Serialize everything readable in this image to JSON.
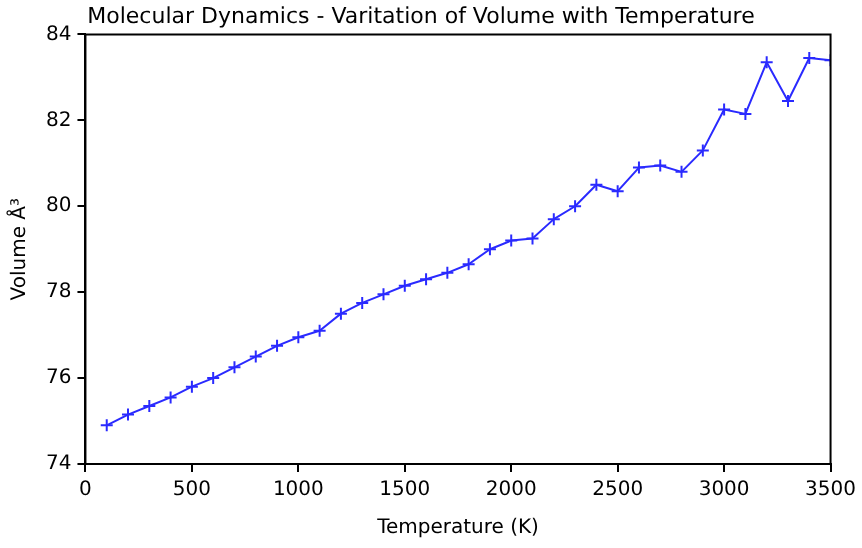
{
  "chart_data": {
    "type": "line",
    "title": "Molecular Dynamics - Varitation of Volume with Temperature",
    "xlabel": "Temperature (K)",
    "ylabel": "Volume Å³",
    "x": [
      100,
      200,
      300,
      400,
      500,
      600,
      700,
      800,
      900,
      1000,
      1100,
      1200,
      1300,
      1400,
      1500,
      1600,
      1700,
      1800,
      1900,
      2000,
      2100,
      2200,
      2300,
      2400,
      2500,
      2600,
      2700,
      2800,
      2900,
      3000,
      3100,
      3200,
      3300,
      3400,
      3500
    ],
    "series": [
      {
        "color": "#2a2aff",
        "values": [
          74.9,
          75.15,
          75.35,
          75.55,
          75.8,
          76.0,
          76.25,
          76.5,
          76.75,
          76.95,
          77.1,
          77.5,
          77.75,
          77.95,
          78.15,
          78.3,
          78.45,
          78.65,
          79.0,
          79.2,
          79.25,
          79.7,
          80.0,
          80.5,
          80.35,
          80.9,
          80.95,
          80.8,
          81.3,
          82.25,
          82.15,
          83.35,
          82.45,
          83.45,
          83.4
        ]
      }
    ],
    "xlim": [
      0,
      3500
    ],
    "xticks": [
      0,
      500,
      1000,
      1500,
      2000,
      2500,
      3000,
      3500
    ],
    "ylim": [
      74,
      84
    ],
    "yticks": [
      74,
      76,
      78,
      80,
      82,
      84
    ],
    "grid": false,
    "legend": false,
    "marker": "cross",
    "line_style": "solid"
  }
}
